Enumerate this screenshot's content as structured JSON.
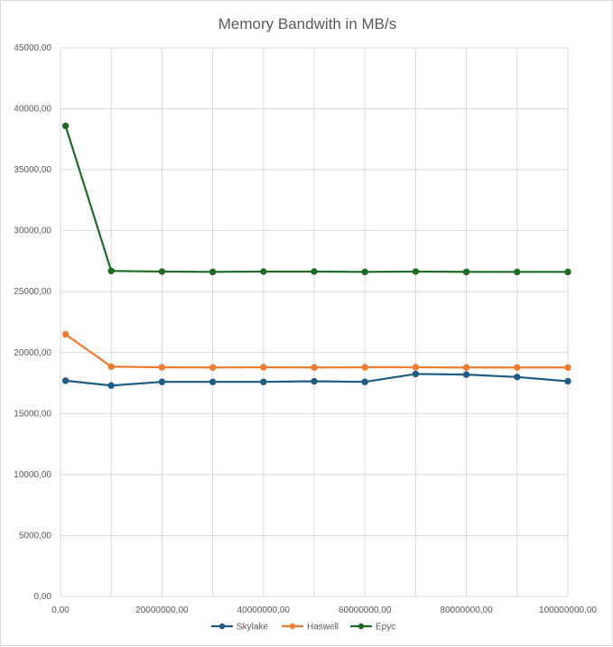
{
  "chart_data": {
    "type": "scatter",
    "title": "Memory Bandwith in MB/s",
    "xlabel": "",
    "ylabel": "",
    "xlim": [
      0,
      100000000
    ],
    "ylim": [
      0,
      45000
    ],
    "x_ticks": [
      0,
      20000000,
      40000000,
      60000000,
      80000000,
      100000000
    ],
    "x_tick_labels": [
      "0,00",
      "20000000,00",
      "40000000,00",
      "60000000,00",
      "80000000,00",
      "100000000,00"
    ],
    "y_ticks": [
      0,
      5000,
      10000,
      15000,
      20000,
      25000,
      30000,
      35000,
      40000,
      45000
    ],
    "y_tick_labels": [
      "0,00",
      "5000,00",
      "10000,00",
      "15000,00",
      "20000,00",
      "25000,00",
      "30000,00",
      "35000,00",
      "40000,00",
      "45000,00"
    ],
    "x_gridlines": [
      0,
      10000000,
      20000000,
      30000000,
      40000000,
      50000000,
      60000000,
      70000000,
      80000000,
      90000000,
      100000000
    ],
    "grid": true,
    "legend": "bottom",
    "x": [
      1000000,
      10000000,
      20000000,
      30000000,
      40000000,
      50000000,
      60000000,
      70000000,
      80000000,
      90000000,
      100000000
    ],
    "series": [
      {
        "name": "Skylake",
        "color": "#1f5c84",
        "values": [
          17700,
          17300,
          17600,
          17600,
          17600,
          17650,
          17600,
          18250,
          18200,
          18000,
          17650
        ]
      },
      {
        "name": "Haswell",
        "color": "#ed7d31",
        "values": [
          21500,
          18850,
          18800,
          18780,
          18800,
          18780,
          18800,
          18800,
          18780,
          18780,
          18780
        ]
      },
      {
        "name": "Epyc",
        "color": "#1e6b24",
        "values": [
          38600,
          26700,
          26650,
          26620,
          26650,
          26650,
          26620,
          26650,
          26620,
          26620,
          26620
        ]
      }
    ]
  }
}
